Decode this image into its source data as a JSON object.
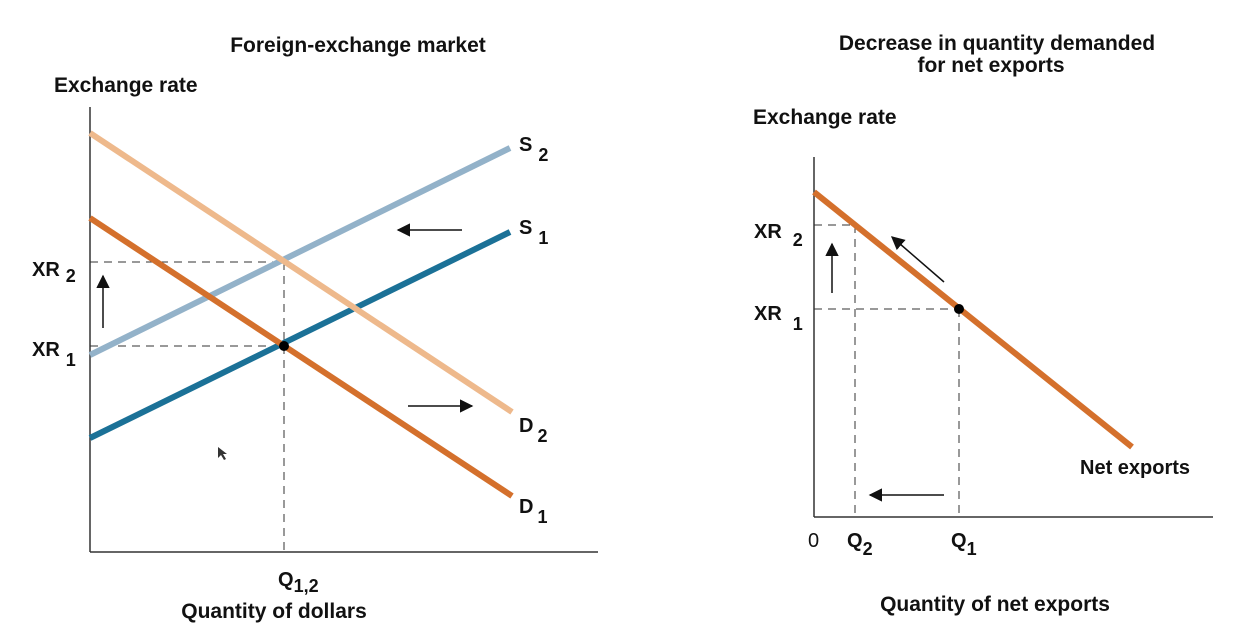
{
  "left_panel": {
    "title": "Foreign-exchange market",
    "y_axis_title": "Exchange rate",
    "x_axis_title": "Quantity of dollars",
    "y_ticks": [
      {
        "main": "XR",
        "sub": "2"
      },
      {
        "main": "XR",
        "sub": "1"
      }
    ],
    "x_tick": {
      "main": "Q",
      "sub": "1,2"
    },
    "curves": [
      {
        "main": "S",
        "sub": "2"
      },
      {
        "main": "S",
        "sub": "1"
      },
      {
        "main": "D",
        "sub": "2"
      },
      {
        "main": "D",
        "sub": "1"
      }
    ]
  },
  "right_panel": {
    "title_line1": "Decrease in quantity demanded",
    "title_line2": "for net exports",
    "y_axis_title": "Exchange rate",
    "x_axis_title": "Quantity of net exports",
    "origin_label": "0",
    "y_ticks": [
      {
        "main": "XR",
        "sub": "2"
      },
      {
        "main": "XR",
        "sub": "1"
      }
    ],
    "x_ticks": [
      {
        "main": "Q",
        "sub": "2"
      },
      {
        "main": "Q",
        "sub": "1"
      }
    ],
    "curve_label": "Net exports"
  },
  "colors": {
    "supply_1": "#1b7197",
    "supply_2": "#93b2c9",
    "demand_1": "#d4702c",
    "demand_2": "#eeb98c",
    "net_exports": "#d4702c",
    "axis": "#333333"
  }
}
